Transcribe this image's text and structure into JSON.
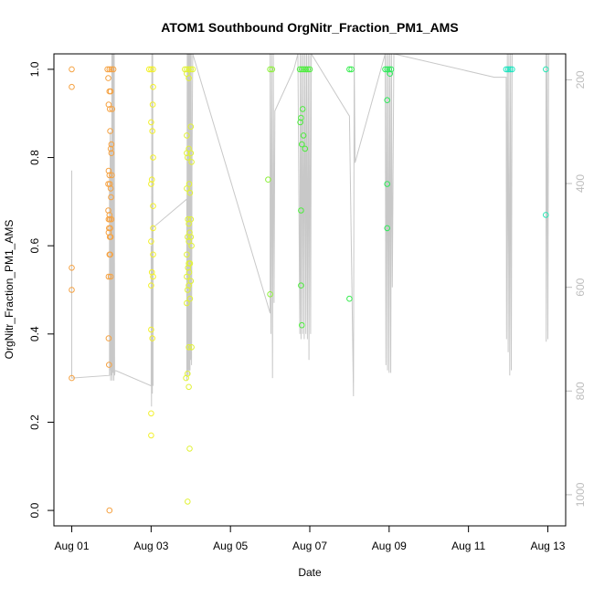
{
  "chart_data": {
    "type": "scatter",
    "title": "ATOM1 Southbound OrgNitr_Fraction_PM1_AMS",
    "xlabel": "Date",
    "ylabel": "OrgNitr_Fraction_PM1_AMS",
    "x_unit": "days since Aug 01",
    "xlim": [
      -0.45,
      12.45
    ],
    "ylim": [
      -0.035,
      1.035
    ],
    "x_ticks": [
      {
        "value": 0,
        "label": "Aug 01"
      },
      {
        "value": 2,
        "label": "Aug 03"
      },
      {
        "value": 4,
        "label": "Aug 05"
      },
      {
        "value": 6,
        "label": "Aug 07"
      },
      {
        "value": 8,
        "label": "Aug 09"
      },
      {
        "value": 10,
        "label": "Aug 11"
      },
      {
        "value": 12,
        "label": "Aug 13"
      }
    ],
    "y_ticks": [
      "0.0",
      "0.2",
      "0.4",
      "0.6",
      "0.8",
      "1.0"
    ],
    "right_axis": {
      "color": "#bdbdbd",
      "lim": [
        1060,
        150
      ],
      "ticks": [
        "200",
        "400",
        "600",
        "800",
        "1000"
      ]
    },
    "altitude_trace_color": "#c8c8c8",
    "altitude_trace": [
      [
        0.0,
        375
      ],
      [
        0.0,
        775
      ],
      [
        0.95,
        770
      ],
      [
        0.95,
        385
      ],
      [
        0.96,
        760
      ],
      [
        0.97,
        300
      ],
      [
        0.98,
        780
      ],
      [
        0.99,
        320
      ],
      [
        1.0,
        770
      ],
      [
        1.01,
        150
      ],
      [
        1.02,
        780
      ],
      [
        1.03,
        150
      ],
      [
        1.04,
        765
      ],
      [
        1.05,
        150
      ],
      [
        1.06,
        780
      ],
      [
        1.07,
        150
      ],
      [
        1.08,
        770
      ],
      [
        1.09,
        760
      ],
      [
        2.0,
        790
      ],
      [
        2.0,
        520
      ],
      [
        2.01,
        830
      ],
      [
        2.02,
        150
      ],
      [
        2.03,
        805
      ],
      [
        2.04,
        150
      ],
      [
        2.05,
        790
      ],
      [
        2.05,
        485
      ],
      [
        2.9,
        430
      ],
      [
        2.9,
        780
      ],
      [
        2.91,
        150
      ],
      [
        2.92,
        770
      ],
      [
        2.93,
        150
      ],
      [
        2.94,
        760
      ],
      [
        2.95,
        150
      ],
      [
        2.96,
        770
      ],
      [
        2.97,
        150
      ],
      [
        2.98,
        760
      ],
      [
        2.99,
        150
      ],
      [
        3.0,
        740
      ],
      [
        3.01,
        150
      ],
      [
        3.02,
        750
      ],
      [
        3.03,
        360
      ],
      [
        3.05,
        150
      ],
      [
        5.0,
        650
      ],
      [
        5.0,
        150
      ],
      [
        5.02,
        690
      ],
      [
        5.04,
        150
      ],
      [
        5.06,
        775
      ],
      [
        5.08,
        150
      ],
      [
        5.1,
        630
      ],
      [
        5.12,
        260
      ],
      [
        5.6,
        180
      ],
      [
        5.7,
        150
      ],
      [
        5.75,
        690
      ],
      [
        5.76,
        150
      ],
      [
        5.78,
        700
      ],
      [
        5.8,
        150
      ],
      [
        5.82,
        690
      ],
      [
        5.84,
        150
      ],
      [
        5.86,
        700
      ],
      [
        5.88,
        150
      ],
      [
        5.9,
        690
      ],
      [
        5.92,
        150
      ],
      [
        5.94,
        700
      ],
      [
        5.96,
        150
      ],
      [
        5.98,
        740
      ],
      [
        6.0,
        150
      ],
      [
        6.02,
        690
      ],
      [
        6.04,
        150
      ],
      [
        7.0,
        270
      ],
      [
        7.1,
        810
      ],
      [
        7.12,
        150
      ],
      [
        7.14,
        360
      ],
      [
        7.9,
        150
      ],
      [
        7.92,
        750
      ],
      [
        7.94,
        150
      ],
      [
        7.96,
        760
      ],
      [
        7.98,
        150
      ],
      [
        8.0,
        765
      ],
      [
        8.02,
        150
      ],
      [
        8.04,
        765
      ],
      [
        8.06,
        150
      ],
      [
        8.08,
        600
      ],
      [
        8.1,
        360
      ],
      [
        8.12,
        150
      ],
      [
        10.65,
        195
      ],
      [
        10.95,
        195
      ],
      [
        10.96,
        700
      ],
      [
        10.98,
        150
      ],
      [
        11.0,
        725
      ],
      [
        11.02,
        150
      ],
      [
        11.04,
        770
      ],
      [
        11.06,
        150
      ],
      [
        11.08,
        760
      ],
      [
        11.1,
        150
      ],
      [
        11.95,
        150
      ],
      [
        11.96,
        705
      ],
      [
        11.98,
        150
      ],
      [
        12.0,
        700
      ],
      [
        12.02,
        150
      ]
    ],
    "series": [
      {
        "color": "#f5a243",
        "points": [
          [
            0.0,
            1.0
          ],
          [
            0.0,
            0.96
          ],
          [
            0.0,
            0.55
          ],
          [
            0.0,
            0.5
          ],
          [
            0.0,
            0.3
          ],
          [
            0.9,
            1.0
          ],
          [
            0.95,
            1.0
          ],
          [
            1.0,
            1.0
          ],
          [
            1.05,
            1.0
          ],
          [
            0.92,
            0.98
          ],
          [
            0.95,
            0.95
          ],
          [
            0.98,
            0.95
          ],
          [
            0.93,
            0.92
          ],
          [
            0.96,
            0.91
          ],
          [
            1.02,
            0.91
          ],
          [
            0.97,
            0.86
          ],
          [
            1.0,
            0.83
          ],
          [
            0.98,
            0.82
          ],
          [
            1.0,
            0.81
          ],
          [
            0.93,
            0.77
          ],
          [
            0.95,
            0.76
          ],
          [
            1.01,
            0.76
          ],
          [
            0.92,
            0.74
          ],
          [
            0.96,
            0.74
          ],
          [
            0.98,
            0.73
          ],
          [
            0.99,
            0.71
          ],
          [
            0.92,
            0.68
          ],
          [
            0.95,
            0.67
          ],
          [
            0.93,
            0.66
          ],
          [
            0.96,
            0.66
          ],
          [
            1.0,
            0.66
          ],
          [
            0.94,
            0.64
          ],
          [
            0.97,
            0.64
          ],
          [
            0.93,
            0.63
          ],
          [
            0.96,
            0.62
          ],
          [
            0.98,
            0.62
          ],
          [
            0.95,
            0.58
          ],
          [
            0.97,
            0.58
          ],
          [
            0.93,
            0.53
          ],
          [
            0.98,
            0.53
          ],
          [
            0.93,
            0.39
          ],
          [
            0.94,
            0.33
          ],
          [
            0.95,
            0.0
          ]
        ]
      },
      {
        "color": "#f2f02a",
        "points": [
          [
            1.95,
            1.0
          ],
          [
            2.0,
            1.0
          ],
          [
            2.05,
            1.0
          ],
          [
            2.05,
            0.96
          ],
          [
            2.04,
            0.92
          ],
          [
            2.0,
            0.88
          ],
          [
            2.03,
            0.86
          ],
          [
            2.05,
            0.8
          ],
          [
            2.02,
            0.75
          ],
          [
            2.0,
            0.74
          ],
          [
            2.05,
            0.69
          ],
          [
            2.05,
            0.64
          ],
          [
            2.0,
            0.61
          ],
          [
            2.05,
            0.58
          ],
          [
            2.02,
            0.54
          ],
          [
            2.05,
            0.53
          ],
          [
            2.0,
            0.51
          ],
          [
            2.0,
            0.41
          ],
          [
            2.03,
            0.39
          ],
          [
            2.0,
            0.22
          ],
          [
            2.0,
            0.17
          ]
        ]
      },
      {
        "color": "#e1f235",
        "points": [
          [
            2.85,
            1.0
          ],
          [
            2.9,
            1.0
          ],
          [
            2.95,
            1.0
          ],
          [
            3.0,
            1.0
          ],
          [
            3.05,
            1.0
          ],
          [
            2.9,
            0.99
          ],
          [
            2.95,
            0.98
          ],
          [
            3.0,
            0.87
          ],
          [
            2.9,
            0.85
          ],
          [
            2.95,
            0.82
          ],
          [
            2.9,
            0.81
          ],
          [
            3.0,
            0.81
          ],
          [
            2.92,
            0.8
          ],
          [
            3.02,
            0.79
          ],
          [
            2.96,
            0.74
          ],
          [
            2.9,
            0.73
          ],
          [
            2.98,
            0.72
          ],
          [
            2.93,
            0.66
          ],
          [
            3.0,
            0.66
          ],
          [
            2.95,
            0.65
          ],
          [
            2.97,
            0.63
          ],
          [
            2.92,
            0.62
          ],
          [
            3.0,
            0.62
          ],
          [
            2.95,
            0.61
          ],
          [
            3.02,
            0.6
          ],
          [
            2.9,
            0.58
          ],
          [
            2.95,
            0.56
          ],
          [
            2.98,
            0.56
          ],
          [
            2.93,
            0.55
          ],
          [
            2.96,
            0.54
          ],
          [
            2.9,
            0.53
          ],
          [
            3.0,
            0.52
          ],
          [
            2.95,
            0.51
          ],
          [
            2.92,
            0.5
          ],
          [
            2.98,
            0.48
          ],
          [
            2.9,
            0.47
          ],
          [
            2.95,
            0.37
          ],
          [
            3.02,
            0.37
          ],
          [
            2.92,
            0.31
          ],
          [
            2.88,
            0.3
          ],
          [
            2.95,
            0.28
          ],
          [
            2.97,
            0.14
          ],
          [
            2.92,
            0.02
          ]
        ]
      },
      {
        "color": "#8df03c",
        "points": [
          [
            5.0,
            1.0
          ],
          [
            5.05,
            1.0
          ],
          [
            4.95,
            0.75
          ],
          [
            5.0,
            0.49
          ]
        ]
      },
      {
        "color": "#4ced3c",
        "points": [
          [
            5.75,
            1.0
          ],
          [
            5.8,
            1.0
          ],
          [
            5.85,
            1.0
          ],
          [
            5.9,
            1.0
          ],
          [
            5.95,
            1.0
          ],
          [
            6.0,
            1.0
          ],
          [
            5.82,
            0.91
          ],
          [
            5.78,
            0.89
          ],
          [
            5.76,
            0.88
          ],
          [
            5.84,
            0.85
          ],
          [
            5.8,
            0.83
          ],
          [
            5.88,
            0.82
          ],
          [
            5.78,
            0.68
          ],
          [
            5.78,
            0.51
          ],
          [
            5.8,
            0.42
          ]
        ]
      },
      {
        "color": "#38ed50",
        "points": [
          [
            7.0,
            1.0
          ],
          [
            7.05,
            1.0
          ],
          [
            7.0,
            0.48
          ]
        ]
      },
      {
        "color": "#2eea5a",
        "points": [
          [
            7.9,
            1.0
          ],
          [
            7.95,
            1.0
          ],
          [
            8.0,
            1.0
          ],
          [
            8.05,
            1.0
          ],
          [
            8.02,
            0.99
          ],
          [
            7.95,
            0.93
          ],
          [
            7.95,
            0.74
          ],
          [
            7.95,
            0.64
          ]
        ]
      },
      {
        "color": "#1ee5c0",
        "points": [
          [
            10.95,
            1.0
          ],
          [
            11.0,
            1.0
          ],
          [
            11.05,
            1.0
          ],
          [
            11.1,
            1.0
          ]
        ]
      },
      {
        "color": "#27e7b5",
        "points": [
          [
            11.95,
            1.0
          ],
          [
            11.95,
            0.67
          ]
        ]
      }
    ]
  }
}
